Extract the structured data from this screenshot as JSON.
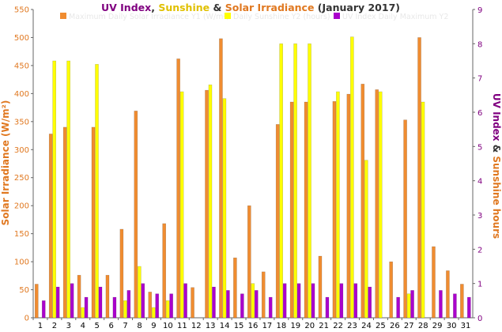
{
  "chart_data": {
    "type": "bar",
    "title_parts": [
      {
        "text": "UV Index",
        "color": "#800080"
      },
      {
        "text": ", ",
        "color": "#333333"
      },
      {
        "text": "Sunshine",
        "color": "#E0C000"
      },
      {
        "text": " & ",
        "color": "#333333"
      },
      {
        "text": "Solar Irradiance",
        "color": "#E07820"
      },
      {
        "text": " (January 2017)",
        "color": "#333333"
      }
    ],
    "ylabel_left": "Solar Irradiance (W/m²)",
    "ylabel_right_parts": [
      {
        "text": "UV Index",
        "color": "#800080"
      },
      {
        "text": " & ",
        "color": "#333333"
      },
      {
        "text": "Sunshine hours",
        "color": "#E07820"
      }
    ],
    "categories": [
      "1",
      "2",
      "3",
      "4",
      "5",
      "6",
      "7",
      "8",
      "9",
      "10",
      "11",
      "12",
      "13",
      "14",
      "15",
      "16",
      "17",
      "18",
      "19",
      "20",
      "21",
      "22",
      "23",
      "24",
      "25",
      "26",
      "27",
      "28",
      "29",
      "30",
      "31"
    ],
    "ylim_left": [
      0,
      550
    ],
    "yticks_left": [
      0,
      50,
      100,
      150,
      200,
      250,
      300,
      350,
      400,
      450,
      500,
      550
    ],
    "ylim_right": [
      0,
      9
    ],
    "yticks_right": [
      0,
      1,
      2,
      3,
      4,
      5,
      6,
      7,
      8,
      9
    ],
    "grid": false,
    "legend_position": "top",
    "series": [
      {
        "name": "Maximum Daily Solar Irradiance Y1 (W/m²)",
        "axis": "left",
        "color": "#F08C30",
        "values": [
          60,
          328,
          340,
          76,
          340,
          76,
          158,
          369,
          46,
          168,
          462,
          54,
          406,
          498,
          107,
          200,
          82,
          345,
          385,
          385,
          110,
          386,
          399,
          417,
          407,
          100,
          353,
          500,
          127,
          84,
          60
        ]
      },
      {
        "name": "Daily Sunshine Y2 (hours)",
        "axis": "right",
        "color": "#FFFF00",
        "values": [
          0,
          7.5,
          7.5,
          0.3,
          7.4,
          0,
          0.5,
          1.5,
          0.3,
          0.5,
          6.6,
          0,
          6.8,
          6.4,
          0,
          1.0,
          0,
          8.0,
          8.0,
          8.0,
          0,
          6.6,
          8.2,
          4.6,
          6.6,
          0,
          0.7,
          6.3,
          0,
          0,
          0
        ]
      },
      {
        "name": "UV Index Daily Maximum Y2",
        "axis": "right",
        "color": "#AA00CC",
        "values": [
          0.5,
          0.9,
          1.0,
          0.6,
          0.9,
          0.6,
          0.8,
          1.0,
          0.7,
          0.7,
          1.0,
          0,
          0.9,
          0.8,
          0.7,
          0.8,
          0.6,
          1.0,
          1.0,
          1.0,
          0.6,
          1.0,
          1.0,
          0.9,
          0,
          0.6,
          0.8,
          0,
          0.8,
          0.7,
          0.6
        ]
      }
    ]
  }
}
